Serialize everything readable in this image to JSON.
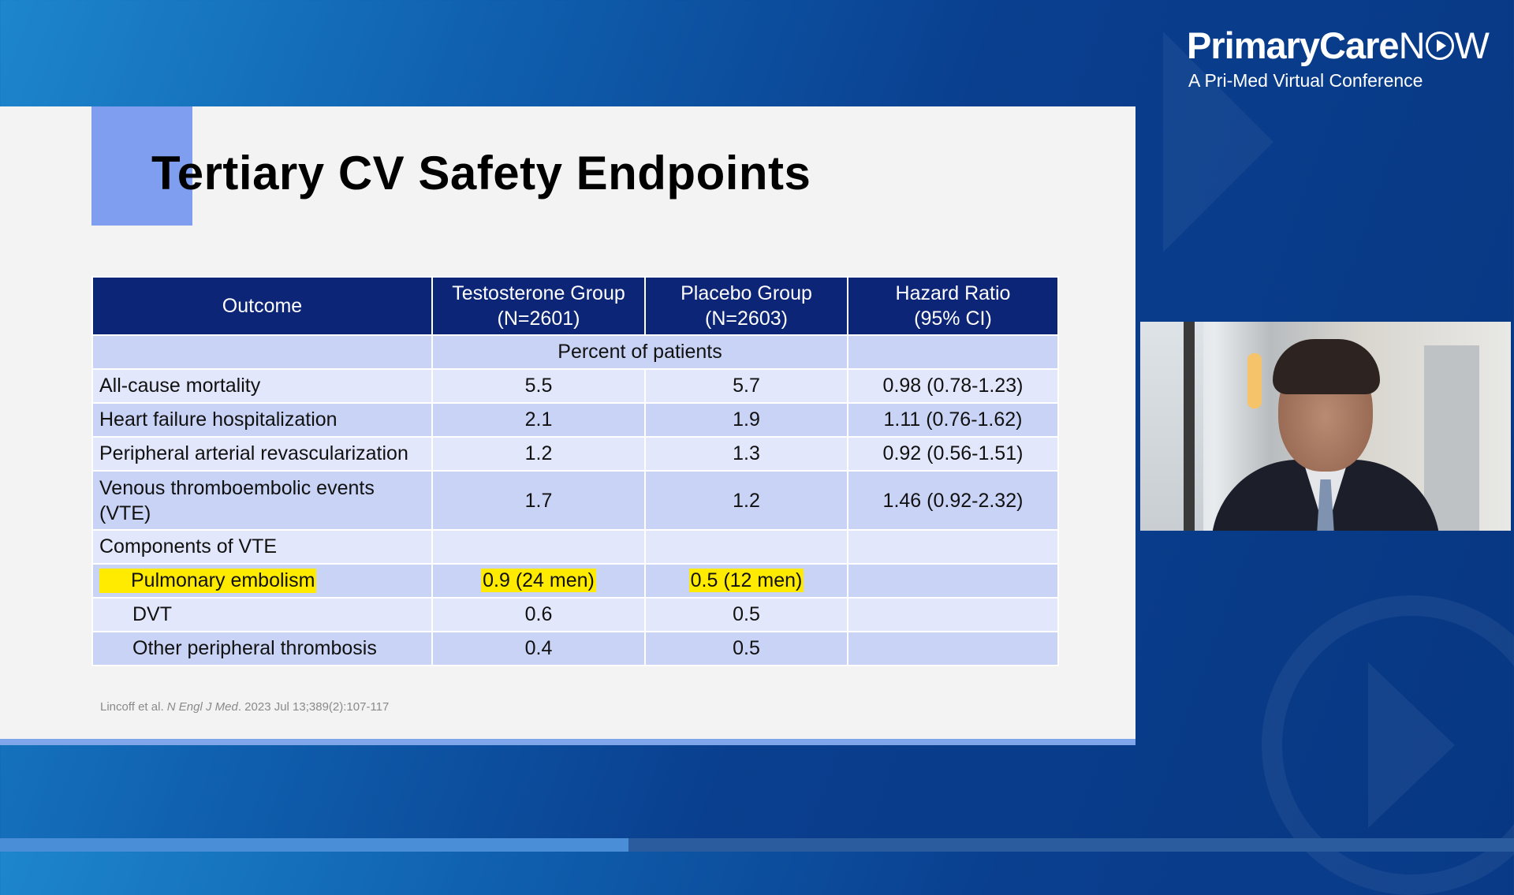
{
  "brand": {
    "name_main": "PrimaryCare",
    "name_n": "N",
    "name_w": "W",
    "subtitle": "A Pri-Med Virtual Conference",
    "play_icon": "play-circle-icon"
  },
  "slide": {
    "title": "Tertiary CV Safety Endpoints",
    "table": {
      "headers": [
        {
          "line1": "Outcome",
          "line2": ""
        },
        {
          "line1": "Testosterone Group",
          "line2": "(N=2601)"
        },
        {
          "line1": "Placebo Group",
          "line2": "(N=2603)"
        },
        {
          "line1": "Hazard Ratio",
          "line2": "(95% CI)"
        }
      ],
      "subheader": "Percent of patients",
      "rows": [
        {
          "outcome": "All-cause mortality",
          "testosterone": "5.5",
          "placebo": "5.7",
          "hr": "0.98 (0.78-1.23)"
        },
        {
          "outcome": "Heart failure hospitalization",
          "testosterone": "2.1",
          "placebo": "1.9",
          "hr": "1.11 (0.76-1.62)"
        },
        {
          "outcome": "Peripheral arterial revascularization",
          "testosterone": "1.2",
          "placebo": "1.3",
          "hr": "0.92 (0.56-1.51)"
        },
        {
          "outcome_line1": "Venous thromboembolic events",
          "outcome_line2": "(VTE)",
          "testosterone": "1.7",
          "placebo": "1.2",
          "hr": "1.46 (0.92-2.32)"
        },
        {
          "outcome": "Components of  VTE",
          "testosterone": "",
          "placebo": "",
          "hr": ""
        },
        {
          "outcome": "Pulmonary embolism",
          "testosterone": "0.9 (24 men)",
          "placebo": "0.5 (12 men)",
          "hr": ""
        },
        {
          "outcome": "DVT",
          "testosterone": "0.6",
          "placebo": "0.5",
          "hr": ""
        },
        {
          "outcome": "Other peripheral thrombosis",
          "testosterone": "0.4",
          "placebo": "0.5",
          "hr": ""
        }
      ],
      "highlight_color": "#ffeb00",
      "header_color": "#0d2577"
    },
    "citation": {
      "authors": "Lincoff et al. ",
      "journal": "N Engl J Med",
      "details": ". 2023 Jul 13;389(2):107-117"
    }
  },
  "video_progress_fraction": 0.415
}
